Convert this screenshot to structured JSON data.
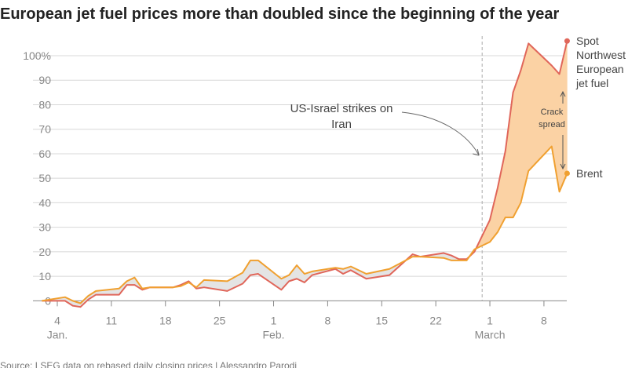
{
  "chart_data": {
    "type": "line",
    "title": "European jet fuel prices more than doubled since the beginning of the year",
    "source": "Source: LSEG data on rebased daily closing prices | Alessandro Parodi",
    "x": [
      2,
      5,
      6,
      7,
      8,
      9,
      12,
      13,
      14,
      15,
      16,
      19,
      20,
      21,
      22,
      23,
      26,
      28,
      29,
      30,
      33,
      34,
      35,
      36,
      37,
      40,
      41,
      42,
      44,
      47,
      50,
      51,
      54,
      55,
      56,
      57,
      58,
      60,
      61,
      62,
      63,
      64,
      65,
      68,
      69,
      70
    ],
    "series": [
      {
        "label_lines": [
          "Spot",
          "Northwest",
          "European",
          "jet fuel"
        ],
        "color": "#e0665a",
        "values": [
          0,
          0,
          -2,
          -2.5,
          0.5,
          2.5,
          2.5,
          6.5,
          6.5,
          4.5,
          5.5,
          5.5,
          6.5,
          8,
          5,
          5.5,
          4,
          7,
          10.5,
          11,
          4.5,
          8,
          9,
          7.5,
          10.5,
          13,
          11,
          12.5,
          9,
          10.5,
          19,
          18,
          19.5,
          18.5,
          17,
          17,
          20,
          33,
          46,
          61,
          85,
          94,
          105,
          96,
          92.5,
          106
        ]
      },
      {
        "label_lines": [
          "Brent"
        ],
        "color": "#f0a030",
        "values": [
          0,
          1.5,
          0,
          -1,
          2,
          4,
          5,
          8,
          9.5,
          5,
          5.5,
          5.5,
          6,
          7.5,
          5.5,
          8.5,
          8,
          11.5,
          16.5,
          16.5,
          9,
          10.5,
          14.5,
          11,
          12,
          13.5,
          13,
          14,
          11,
          13,
          18,
          18,
          17.5,
          16.5,
          16.5,
          16.5,
          21,
          24,
          28,
          34,
          34,
          40,
          53,
          63,
          44.5,
          52
        ]
      }
    ],
    "xlim": [
      0,
      74
    ],
    "xticks": [
      4,
      11,
      18,
      25,
      {
        "value": 32,
        "label": "1"
      },
      {
        "value": 39,
        "label": "8"
      },
      {
        "value": 46,
        "label": "15"
      },
      {
        "value": 53,
        "label": "22"
      },
      {
        "value": 60,
        "label": "1"
      },
      {
        "value": 67,
        "label": "8"
      }
    ],
    "month_labels": [
      {
        "value": 4,
        "label": "Jan."
      },
      {
        "value": 32,
        "label": "Feb."
      },
      {
        "value": 60,
        "label": "March"
      }
    ],
    "ylim": [
      -5,
      108
    ],
    "yticks": [
      0,
      10,
      20,
      30,
      40,
      50,
      60,
      70,
      80,
      90,
      {
        "value": 100,
        "label": "100%"
      }
    ],
    "grid": true,
    "event": {
      "x": 59,
      "label_lines": [
        "US-Israel strikes on",
        "Iran"
      ]
    },
    "spread_label_lines": [
      "Crack",
      "spread"
    ],
    "spread_color": "#fbd2a4",
    "neutral_fill": "#e4e4e4"
  }
}
